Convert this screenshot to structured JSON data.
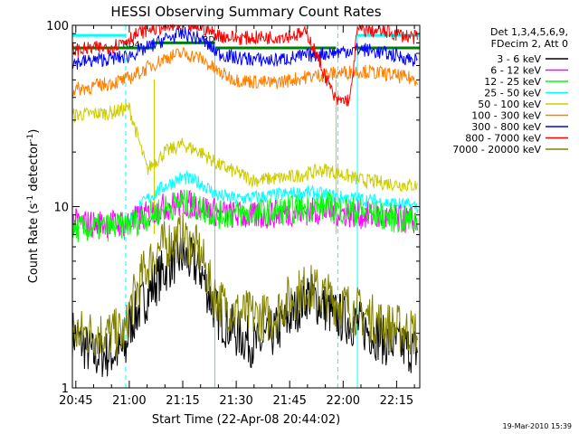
{
  "chart_data": {
    "type": "line",
    "title": "HESSI Observing Summary Count Rates",
    "xlabel": "Start Time (22-Apr-08 20:44:02)",
    "ylabel": "Count Rate (s",
    "ylabel_sup": "-1",
    "ylabel_tail": " detector",
    "ylabel_sup2": "-1",
    "ylabel_close": ")",
    "y_scale": "log",
    "ylim": [
      1,
      100
    ],
    "xlim": [
      "20:44:02",
      "22:21:30"
    ],
    "y_ticks": [
      {
        "value": 1,
        "label": "1"
      },
      {
        "value": 10,
        "label": "10"
      },
      {
        "value": 100,
        "label": "100"
      }
    ],
    "x_ticks": [
      {
        "value": "20:45",
        "label": "20:45"
      },
      {
        "value": "21:00",
        "label": "21:00"
      },
      {
        "value": "21:15",
        "label": "21:15"
      },
      {
        "value": "21:30",
        "label": "21:30"
      },
      {
        "value": "21:45",
        "label": "21:45"
      },
      {
        "value": "22:00",
        "label": "22:00"
      },
      {
        "value": "22:15",
        "label": "22:15"
      }
    ],
    "legend_placement": "right",
    "legend_header": [
      "Det 1,3,4,5,6,9,",
      "FDecim 2, Att 0"
    ],
    "series": [
      {
        "name": "3 - 6 keV",
        "color": "#000000",
        "points": [
          [
            "20:44:02",
            2
          ],
          [
            "20:50",
            1.5
          ],
          [
            "20:59",
            1.6
          ],
          [
            "21:00",
            2.2
          ],
          [
            "21:04",
            3
          ],
          [
            "21:08",
            4
          ],
          [
            "21:12",
            5
          ],
          [
            "21:15",
            5.3
          ],
          [
            "21:20",
            4.5
          ],
          [
            "21:23",
            3
          ],
          [
            "21:25",
            2.5
          ],
          [
            "21:30",
            2
          ],
          [
            "21:36",
            1.7
          ],
          [
            "21:44",
            2.3
          ],
          [
            "21:50",
            3.3
          ],
          [
            "21:58",
            2.5
          ],
          [
            "22:05",
            2.2
          ],
          [
            "22:12",
            1.8
          ],
          [
            "22:21",
            1.6
          ]
        ]
      },
      {
        "name": "6 - 12 keV",
        "color": "#ff00ff",
        "points": [
          [
            "20:44:02",
            8.2
          ],
          [
            "20:50",
            8
          ],
          [
            "20:59",
            8.1
          ],
          [
            "21:05",
            9
          ],
          [
            "21:10",
            10
          ],
          [
            "21:15",
            10.5
          ],
          [
            "21:20",
            10
          ],
          [
            "21:25",
            9.2
          ],
          [
            "21:35",
            8.8
          ],
          [
            "21:45",
            9.3
          ],
          [
            "21:55",
            9.5
          ],
          [
            "22:05",
            9
          ],
          [
            "22:12",
            8.6
          ],
          [
            "22:21",
            8.4
          ]
        ]
      },
      {
        "name": "12 - 25 keV",
        "color": "#00ff00",
        "points": [
          [
            "20:44:02",
            7.5
          ],
          [
            "20:50",
            7.6
          ],
          [
            "20:59",
            7.8
          ],
          [
            "21:05",
            8.8
          ],
          [
            "21:10",
            9.8
          ],
          [
            "21:15",
            10.5
          ],
          [
            "21:20",
            9.8
          ],
          [
            "21:25",
            9
          ],
          [
            "21:35",
            9.2
          ],
          [
            "21:45",
            9.6
          ],
          [
            "21:55",
            10
          ],
          [
            "22:05",
            9.3
          ],
          [
            "22:12",
            8.8
          ],
          [
            "22:21",
            8.2
          ]
        ]
      },
      {
        "name": "25 - 50 keV",
        "color": "#00ffff",
        "points": [
          [
            "21:00",
            8.5
          ],
          [
            "21:05",
            11
          ],
          [
            "21:10",
            13
          ],
          [
            "21:15",
            14.5
          ],
          [
            "21:20",
            13.5
          ],
          [
            "21:25",
            11.5
          ],
          [
            "21:30",
            11
          ],
          [
            "21:40",
            11.5
          ],
          [
            "21:50",
            12
          ],
          [
            "22:00",
            11.2
          ],
          [
            "22:05",
            11
          ],
          [
            "22:12",
            10.5
          ],
          [
            "22:21",
            10
          ]
        ]
      },
      {
        "name": "50 - 100 keV",
        "color": "#cccc00",
        "points": [
          [
            "20:44:02",
            32
          ],
          [
            "20:55",
            33
          ],
          [
            "21:00",
            35
          ],
          [
            "21:05",
            16
          ],
          [
            "21:10",
            20
          ],
          [
            "21:15",
            22
          ],
          [
            "21:20",
            20
          ],
          [
            "21:25",
            17
          ],
          [
            "21:35",
            14
          ],
          [
            "21:45",
            14.5
          ],
          [
            "21:55",
            16
          ],
          [
            "22:05",
            14
          ],
          [
            "22:12",
            13.5
          ],
          [
            "22:21",
            13
          ]
        ]
      },
      {
        "name": "100 - 300 keV",
        "color": "#ff8000",
        "points": [
          [
            "20:44:02",
            44
          ],
          [
            "20:50",
            46
          ],
          [
            "20:59",
            50
          ],
          [
            "21:05",
            58
          ],
          [
            "21:10",
            66
          ],
          [
            "21:15",
            70
          ],
          [
            "21:20",
            66
          ],
          [
            "21:25",
            55
          ],
          [
            "21:30",
            50
          ],
          [
            "21:40",
            48
          ],
          [
            "21:50",
            52
          ],
          [
            "22:00",
            55
          ],
          [
            "22:05",
            56
          ],
          [
            "22:12",
            54
          ],
          [
            "22:21",
            50
          ]
        ]
      },
      {
        "name": "300 - 800 keV",
        "color": "#0000ff",
        "points": [
          [
            "20:44:02",
            62
          ],
          [
            "20:50",
            64
          ],
          [
            "20:59",
            67
          ],
          [
            "21:05",
            75
          ],
          [
            "21:10",
            84
          ],
          [
            "21:15",
            90
          ],
          [
            "21:20",
            84
          ],
          [
            "21:25",
            70
          ],
          [
            "21:30",
            66
          ],
          [
            "21:40",
            64
          ],
          [
            "21:50",
            68
          ],
          [
            "22:00",
            72
          ],
          [
            "22:05",
            74
          ],
          [
            "22:12",
            70
          ],
          [
            "22:21",
            64
          ]
        ]
      },
      {
        "name": "800 - 7000 keV",
        "color": "#ff0000",
        "points": [
          [
            "20:44:02",
            73
          ],
          [
            "20:55",
            76
          ],
          [
            "21:00",
            85
          ],
          [
            "21:05",
            95
          ],
          [
            "21:10",
            98
          ],
          [
            "21:15",
            100
          ],
          [
            "21:20",
            98
          ],
          [
            "21:25",
            88
          ],
          [
            "21:30",
            85
          ],
          [
            "21:40",
            86
          ],
          [
            "21:50",
            90
          ],
          [
            "21:58",
            38
          ],
          [
            "22:02",
            39
          ],
          [
            "22:04",
            95
          ],
          [
            "22:12",
            92
          ],
          [
            "22:21",
            85
          ]
        ]
      },
      {
        "name": "7000 - 20000 keV",
        "color": "#808000",
        "points": [
          [
            "20:44:02",
            2
          ],
          [
            "20:59",
            2
          ],
          [
            "21:00",
            2.7
          ],
          [
            "21:04",
            4.3
          ],
          [
            "21:08",
            5.8
          ],
          [
            "21:12",
            6.5
          ],
          [
            "21:15",
            6.8
          ],
          [
            "21:20",
            5.5
          ],
          [
            "21:23",
            3.5
          ],
          [
            "21:25",
            3
          ],
          [
            "21:30",
            2.6
          ],
          [
            "21:40",
            2.4
          ],
          [
            "21:44",
            3
          ],
          [
            "21:50",
            3.6
          ],
          [
            "21:58",
            3
          ],
          [
            "22:05",
            2.6
          ],
          [
            "22:12",
            2.2
          ],
          [
            "22:21",
            2
          ]
        ]
      }
    ],
    "flags": [
      {
        "label": "RD4",
        "color": "#008000",
        "y": 75,
        "segments": [
          [
            "20:44:02",
            "21:07"
          ],
          [
            "21:24",
            "21:58"
          ],
          [
            "22:04",
            "22:21:30"
          ]
        ]
      },
      {
        "label": "RD",
        "color": "#008000",
        "y": 80,
        "segments": [
          [
            "21:07",
            "21:24"
          ]
        ]
      },
      {
        "label": "",
        "color": "#00ffff",
        "y": 88,
        "segments": [
          [
            "20:44:02",
            "20:59"
          ],
          [
            "22:04",
            "22:21:30"
          ]
        ]
      }
    ],
    "night_markers": {
      "color": "#00ffff",
      "solid": [
        "20:44:02",
        "21:24",
        "22:04"
      ],
      "dashed": [
        "20:59",
        "21:58:30",
        "22:21:30"
      ]
    },
    "saa_markers": {
      "color": "#cccc00",
      "solid": [
        "21:07",
        "21:58"
      ]
    },
    "timestamp": "19-Mar-2010 15:39"
  }
}
